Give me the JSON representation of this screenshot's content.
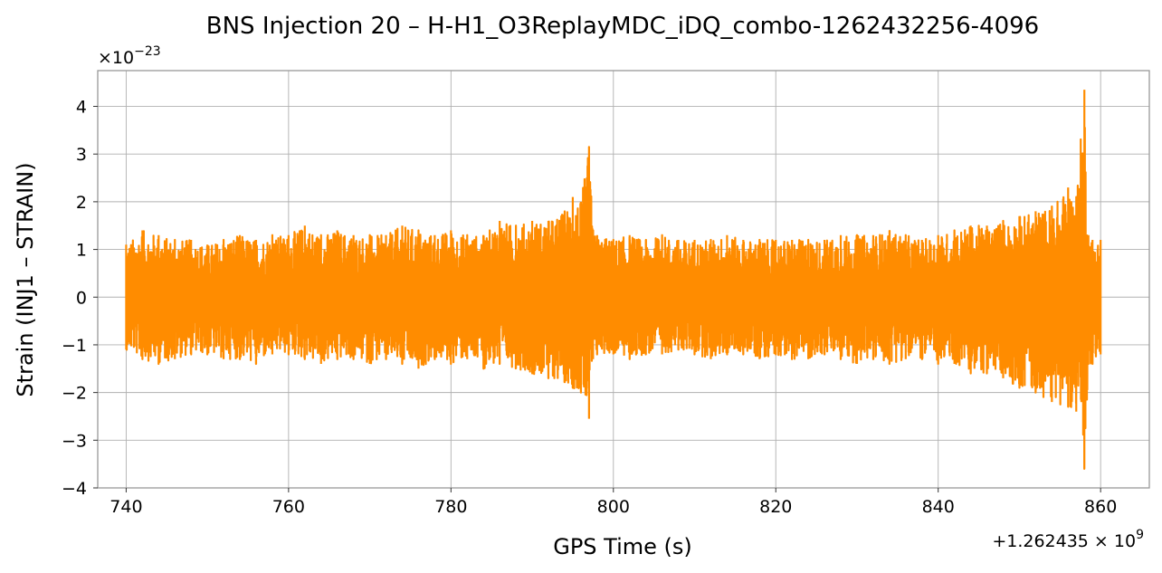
{
  "chart_data": {
    "type": "line",
    "title": "BNS Injection 20 – H-H1_O3ReplayMDC_iDQ_combo-1262432256-4096",
    "xlabel": "GPS Time (s)",
    "ylabel": "Strain (INJ1 – STRAIN)",
    "x_offset_label": "+1.262435",
    "x_offset_exponent": "9",
    "y_scale_label": "×10",
    "y_scale_exponent": "−23",
    "xlim": [
      736.5,
      866
    ],
    "ylim": [
      -4,
      4.75
    ],
    "grid": true,
    "line_color": "#ff8c00",
    "x_ticks": [
      {
        "value": 740,
        "label": "740"
      },
      {
        "value": 760,
        "label": "760"
      },
      {
        "value": 780,
        "label": "780"
      },
      {
        "value": 800,
        "label": "800"
      },
      {
        "value": 820,
        "label": "820"
      },
      {
        "value": 840,
        "label": "840"
      },
      {
        "value": 860,
        "label": "860"
      }
    ],
    "y_ticks": [
      {
        "value": -4,
        "label": "−4"
      },
      {
        "value": -3,
        "label": "−3"
      },
      {
        "value": -2,
        "label": "−2"
      },
      {
        "value": -1,
        "label": "−1"
      },
      {
        "value": 0,
        "label": "0"
      },
      {
        "value": 1,
        "label": "1"
      },
      {
        "value": 2,
        "label": "2"
      },
      {
        "value": 3,
        "label": "3"
      },
      {
        "value": 4,
        "label": "4"
      }
    ],
    "series": [
      {
        "x_start": 740,
        "x_end": 860,
        "x": [
          740,
          742,
          744,
          746,
          748,
          750,
          752,
          754,
          756,
          758,
          760,
          762,
          764,
          766,
          768,
          770,
          772,
          774,
          776,
          778,
          780,
          782,
          784,
          786,
          788,
          790,
          792,
          794,
          795,
          796,
          797,
          797.5,
          798,
          800,
          802,
          804,
          806,
          808,
          810,
          812,
          814,
          816,
          818,
          820,
          822,
          824,
          826,
          828,
          830,
          832,
          834,
          836,
          838,
          840,
          842,
          844,
          846,
          848,
          850,
          852,
          854,
          856,
          857,
          858,
          858.5,
          859,
          860
        ],
        "y_max": [
          1.1,
          1.4,
          1.3,
          1.2,
          1.2,
          1.1,
          1.2,
          1.3,
          1.2,
          1.3,
          1.3,
          1.5,
          1.3,
          1.4,
          1.3,
          1.3,
          1.3,
          1.5,
          1.4,
          1.3,
          1.4,
          1.3,
          1.3,
          1.6,
          1.5,
          1.6,
          1.6,
          1.8,
          2.1,
          2.0,
          3.15,
          1.4,
          1.3,
          1.2,
          1.3,
          1.2,
          1.3,
          1.2,
          1.2,
          1.2,
          1.3,
          1.2,
          1.2,
          1.2,
          1.2,
          1.2,
          1.2,
          1.3,
          1.3,
          1.3,
          1.4,
          1.3,
          1.2,
          1.3,
          1.4,
          1.5,
          1.5,
          1.6,
          1.7,
          1.8,
          1.9,
          2.3,
          2.1,
          4.35,
          1.3,
          1.2,
          1.2
        ],
        "y_min": [
          -1.1,
          -1.3,
          -1.4,
          -1.3,
          -1.2,
          -1.2,
          -1.3,
          -1.3,
          -1.4,
          -1.2,
          -1.2,
          -1.3,
          -1.4,
          -1.3,
          -1.3,
          -1.4,
          -1.3,
          -1.4,
          -1.5,
          -1.3,
          -1.4,
          -1.3,
          -1.5,
          -1.4,
          -1.5,
          -1.6,
          -1.7,
          -1.8,
          -1.9,
          -2.0,
          -2.55,
          -1.3,
          -1.2,
          -1.2,
          -1.3,
          -1.2,
          -1.2,
          -1.1,
          -1.2,
          -1.3,
          -1.2,
          -1.2,
          -1.3,
          -1.2,
          -1.3,
          -1.3,
          -1.2,
          -1.3,
          -1.4,
          -1.3,
          -1.4,
          -1.3,
          -1.3,
          -1.4,
          -1.4,
          -1.6,
          -1.6,
          -1.7,
          -1.9,
          -2.0,
          -2.2,
          -2.3,
          -2.4,
          -3.6,
          -1.4,
          -1.4,
          -1.2
        ]
      }
    ]
  }
}
